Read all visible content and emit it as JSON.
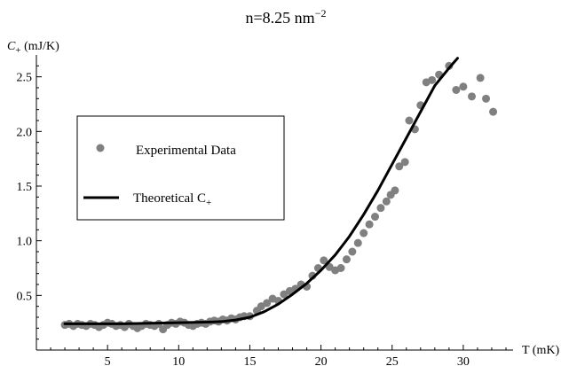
{
  "chart_data": {
    "type": "scatter",
    "title": "n=8.25 nm",
    "title_superscript": "−2",
    "ylabel": "C",
    "ylabel_subscript": "+",
    "ylabel_unit": " (mJ/K)",
    "xlabel": "T (mK)",
    "xlim": [
      0,
      33.5
    ],
    "ylim": [
      0,
      2.7
    ],
    "x_ticks": [
      5,
      10,
      15,
      20,
      25,
      30
    ],
    "y_ticks": [
      0.5,
      1.0,
      1.5,
      2.0,
      2.5
    ],
    "x_tick_labels": [
      "5",
      "10",
      "15",
      "20",
      "25",
      "30"
    ],
    "y_tick_labels": [
      "0.5",
      "1.0",
      "1.5",
      "2.0",
      "2.5"
    ],
    "grid": false,
    "legend_position": "left",
    "series": [
      {
        "name": "Experimental Data",
        "kind": "scatter",
        "color": "#808080",
        "points": [
          [
            2.0,
            0.23
          ],
          [
            2.3,
            0.24
          ],
          [
            2.6,
            0.22
          ],
          [
            2.9,
            0.24
          ],
          [
            3.2,
            0.23
          ],
          [
            3.5,
            0.22
          ],
          [
            3.8,
            0.24
          ],
          [
            4.1,
            0.23
          ],
          [
            4.4,
            0.21
          ],
          [
            4.7,
            0.23
          ],
          [
            5.0,
            0.25
          ],
          [
            5.3,
            0.24
          ],
          [
            5.6,
            0.22
          ],
          [
            5.9,
            0.23
          ],
          [
            6.2,
            0.21
          ],
          [
            6.5,
            0.24
          ],
          [
            6.8,
            0.22
          ],
          [
            7.1,
            0.2
          ],
          [
            7.4,
            0.22
          ],
          [
            7.7,
            0.24
          ],
          [
            8.0,
            0.23
          ],
          [
            8.3,
            0.22
          ],
          [
            8.6,
            0.24
          ],
          [
            8.9,
            0.19
          ],
          [
            9.2,
            0.23
          ],
          [
            9.5,
            0.25
          ],
          [
            9.8,
            0.24
          ],
          [
            10.1,
            0.26
          ],
          [
            10.4,
            0.25
          ],
          [
            10.7,
            0.23
          ],
          [
            11.0,
            0.22
          ],
          [
            11.3,
            0.24
          ],
          [
            11.6,
            0.25
          ],
          [
            11.9,
            0.24
          ],
          [
            12.2,
            0.26
          ],
          [
            12.5,
            0.27
          ],
          [
            12.8,
            0.26
          ],
          [
            13.1,
            0.28
          ],
          [
            13.4,
            0.27
          ],
          [
            13.7,
            0.29
          ],
          [
            14.0,
            0.28
          ],
          [
            14.3,
            0.3
          ],
          [
            14.6,
            0.31
          ],
          [
            15.0,
            0.31
          ],
          [
            15.5,
            0.36
          ],
          [
            15.8,
            0.4
          ],
          [
            16.2,
            0.43
          ],
          [
            16.6,
            0.47
          ],
          [
            17.0,
            0.45
          ],
          [
            17.4,
            0.51
          ],
          [
            17.8,
            0.54
          ],
          [
            18.2,
            0.56
          ],
          [
            18.6,
            0.6
          ],
          [
            19.0,
            0.58
          ],
          [
            19.4,
            0.68
          ],
          [
            19.8,
            0.75
          ],
          [
            20.2,
            0.82
          ],
          [
            20.6,
            0.76
          ],
          [
            21.0,
            0.73
          ],
          [
            21.4,
            0.75
          ],
          [
            21.8,
            0.83
          ],
          [
            22.2,
            0.9
          ],
          [
            22.6,
            0.98
          ],
          [
            23.0,
            1.07
          ],
          [
            23.4,
            1.15
          ],
          [
            23.8,
            1.22
          ],
          [
            24.2,
            1.3
          ],
          [
            24.6,
            1.36
          ],
          [
            24.9,
            1.42
          ],
          [
            25.2,
            1.46
          ],
          [
            25.5,
            1.68
          ],
          [
            25.9,
            1.72
          ],
          [
            26.2,
            2.1
          ],
          [
            26.6,
            2.02
          ],
          [
            27.0,
            2.24
          ],
          [
            27.4,
            2.45
          ],
          [
            27.8,
            2.47
          ],
          [
            28.3,
            2.52
          ],
          [
            29.0,
            2.6
          ],
          [
            29.5,
            2.38
          ],
          [
            30.0,
            2.41
          ],
          [
            30.6,
            2.32
          ],
          [
            31.2,
            2.49
          ],
          [
            31.6,
            2.3
          ],
          [
            32.1,
            2.18
          ]
        ]
      },
      {
        "name": "Theoretical C",
        "name_subscript": "+",
        "kind": "line",
        "color": "#000000",
        "points": [
          [
            2.0,
            0.24
          ],
          [
            4.0,
            0.24
          ],
          [
            6.0,
            0.24
          ],
          [
            8.0,
            0.245
          ],
          [
            10.0,
            0.25
          ],
          [
            12.0,
            0.255
          ],
          [
            13.0,
            0.26
          ],
          [
            14.0,
            0.275
          ],
          [
            15.0,
            0.3
          ],
          [
            16.0,
            0.35
          ],
          [
            17.0,
            0.42
          ],
          [
            18.0,
            0.51
          ],
          [
            19.0,
            0.61
          ],
          [
            20.0,
            0.73
          ],
          [
            21.0,
            0.87
          ],
          [
            22.0,
            1.04
          ],
          [
            23.0,
            1.24
          ],
          [
            24.0,
            1.46
          ],
          [
            25.0,
            1.7
          ],
          [
            26.0,
            1.94
          ],
          [
            27.0,
            2.18
          ],
          [
            28.0,
            2.42
          ],
          [
            29.0,
            2.58
          ],
          [
            29.6,
            2.67
          ]
        ]
      }
    ]
  }
}
